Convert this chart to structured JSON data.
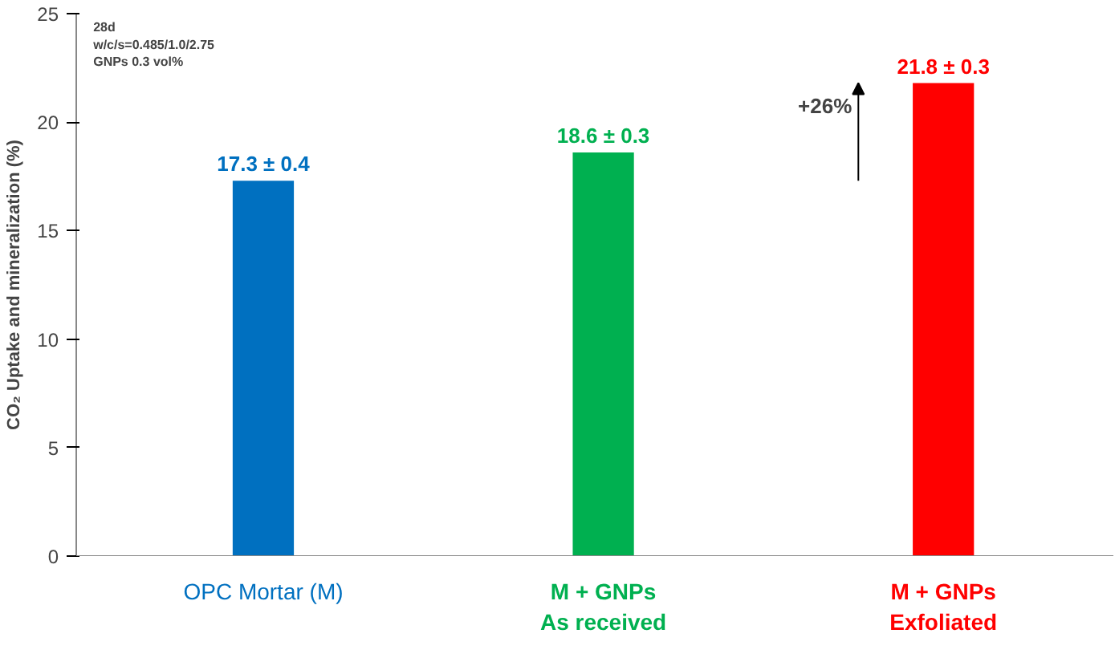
{
  "chart_data": {
    "type": "bar",
    "ylabel": "CO₂ Uptake and mineralization (%)",
    "categories": [
      "OPC Mortar (M)",
      "M + GNPs\nAs received",
      "M + GNPs\nExfoliated"
    ],
    "values": [
      17.3,
      18.6,
      21.8
    ],
    "colors": [
      "#0070c0",
      "#00b050",
      "#ff0000"
    ],
    "value_labels": [
      "17.3 ± 0.4",
      "18.6 ± 0.3",
      "21.8 ± 0.3"
    ],
    "ylim": [
      0,
      25
    ],
    "yticks": [
      0,
      5,
      10,
      15,
      20,
      25
    ],
    "grid": false,
    "annotations": [
      "28d\nw/c/s=0.485/1.0/2.75\nGNPs 0.3 vol%",
      "+26%"
    ]
  }
}
